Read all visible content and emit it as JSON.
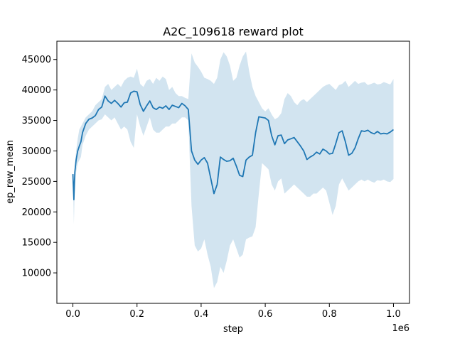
{
  "chart_data": {
    "type": "line",
    "title": "A2C_109618 reward plot",
    "xlabel": "step",
    "ylabel": "ep_rew_mean",
    "x_offset_label": "1e6",
    "xlim": [
      -50000,
      1050000
    ],
    "ylim": [
      5000,
      48000
    ],
    "x_ticks": [
      0,
      200000,
      400000,
      600000,
      800000,
      1000000
    ],
    "x_tick_labels": [
      "0.0",
      "0.2",
      "0.4",
      "0.6",
      "0.8",
      "1.0"
    ],
    "y_ticks": [
      10000,
      15000,
      20000,
      25000,
      30000,
      35000,
      40000,
      45000
    ],
    "y_tick_labels": [
      "10000",
      "15000",
      "20000",
      "25000",
      "30000",
      "35000",
      "40000",
      "45000"
    ],
    "grid": false,
    "colors": {
      "line": "#1f77b4",
      "band": "#1f77b4",
      "band_opacity": 0.2
    },
    "series": [
      {
        "x": [
          0,
          3000,
          6000,
          10000,
          15000,
          20000,
          25000,
          30000,
          40000,
          50000,
          60000,
          70000,
          80000,
          90000,
          100000,
          110000,
          120000,
          130000,
          140000,
          150000,
          160000,
          170000,
          180000,
          190000,
          200000,
          210000,
          220000,
          230000,
          240000,
          250000,
          260000,
          270000,
          280000,
          290000,
          300000,
          310000,
          320000,
          330000,
          340000,
          350000,
          360000,
          370000,
          380000,
          390000,
          400000,
          410000,
          420000,
          430000,
          440000,
          450000,
          460000,
          470000,
          480000,
          490000,
          500000,
          510000,
          520000,
          530000,
          540000,
          550000,
          560000,
          570000,
          580000,
          590000,
          600000,
          610000,
          620000,
          630000,
          640000,
          650000,
          660000,
          670000,
          680000,
          690000,
          700000,
          710000,
          720000,
          730000,
          740000,
          750000,
          760000,
          770000,
          780000,
          790000,
          800000,
          810000,
          820000,
          830000,
          840000,
          850000,
          860000,
          870000,
          880000,
          890000,
          900000,
          910000,
          920000,
          930000,
          940000,
          950000,
          960000,
          970000,
          980000,
          990000,
          1000000
        ],
        "y": [
          26200,
          22000,
          26500,
          28500,
          30000,
          30800,
          31500,
          33000,
          34500,
          35200,
          35400,
          35800,
          36800,
          37200,
          39000,
          38200,
          37800,
          38300,
          37800,
          37200,
          37900,
          38000,
          39500,
          39800,
          39700,
          37600,
          36500,
          37400,
          38200,
          37100,
          36800,
          37200,
          37000,
          37400,
          36800,
          37500,
          37300,
          37100,
          37800,
          37400,
          36800,
          30000,
          28500,
          27800,
          28500,
          28900,
          28000,
          25500,
          23000,
          24500,
          29000,
          28600,
          28300,
          28400,
          28800,
          27500,
          26000,
          25800,
          28500,
          29000,
          29300,
          33000,
          35600,
          35500,
          35400,
          35000,
          32500,
          31000,
          32500,
          32600,
          31200,
          31800,
          32000,
          32200,
          31500,
          30800,
          30000,
          28600,
          29000,
          29300,
          29800,
          29500,
          30300,
          30000,
          29500,
          29600,
          31200,
          33000,
          33300,
          31500,
          29300,
          29600,
          30500,
          32000,
          33300,
          33200,
          33400,
          33000,
          32800,
          33200,
          32800,
          32900,
          32800,
          33100,
          33500
        ],
        "upper": [
          26500,
          22500,
          27500,
          30000,
          32000,
          33500,
          34000,
          34500,
          35500,
          36000,
          36500,
          37500,
          38000,
          38500,
          40500,
          41000,
          40000,
          40500,
          41000,
          40500,
          41500,
          42000,
          42200,
          42000,
          43500,
          41000,
          40500,
          41500,
          41800,
          41000,
          42000,
          41500,
          42200,
          41800,
          40000,
          40500,
          39500,
          39000,
          39000,
          38700,
          38500,
          46000,
          44500,
          43800,
          43000,
          42000,
          41800,
          41500,
          41000,
          42000,
          45000,
          46200,
          45500,
          44000,
          41500,
          42000,
          44000,
          45500,
          46300,
          43000,
          40500,
          39000,
          38000,
          37000,
          36500,
          37000,
          36000,
          35200,
          35500,
          36200,
          38500,
          39500,
          39000,
          38000,
          37500,
          38200,
          38500,
          38000,
          38500,
          39000,
          39500,
          40000,
          40500,
          40800,
          41000,
          40500,
          40000,
          40800,
          41000,
          41500,
          40500,
          41000,
          41500,
          41000,
          41200,
          41300,
          40800,
          41000,
          41200,
          40900,
          41000,
          41300,
          41100,
          40900,
          41800
        ],
        "lower": [
          26000,
          18000,
          24500,
          26500,
          28000,
          28500,
          29000,
          31000,
          32500,
          33500,
          34000,
          34500,
          35000,
          35200,
          36000,
          35500,
          35000,
          35500,
          34500,
          33500,
          34000,
          33500,
          31500,
          30500,
          36000,
          34000,
          32500,
          34000,
          35500,
          33500,
          33000,
          33000,
          33500,
          34000,
          34000,
          34500,
          34500,
          35000,
          35500,
          35500,
          35000,
          21000,
          14500,
          13500,
          14000,
          15500,
          13000,
          11000,
          7500,
          8500,
          11000,
          10000,
          12000,
          14500,
          15500,
          14000,
          12500,
          13000,
          15500,
          15800,
          16000,
          17500,
          23000,
          28000,
          27500,
          27000,
          24500,
          23500,
          25000,
          25500,
          23000,
          23500,
          24000,
          24500,
          24000,
          23500,
          23000,
          22500,
          22500,
          23000,
          23000,
          23500,
          24000,
          23500,
          21500,
          19500,
          21000,
          24500,
          25500,
          24500,
          23500,
          24000,
          24500,
          25000,
          25300,
          25000,
          25300,
          25000,
          24800,
          25200,
          25100,
          25300,
          25000,
          24900,
          25400
        ]
      }
    ]
  }
}
